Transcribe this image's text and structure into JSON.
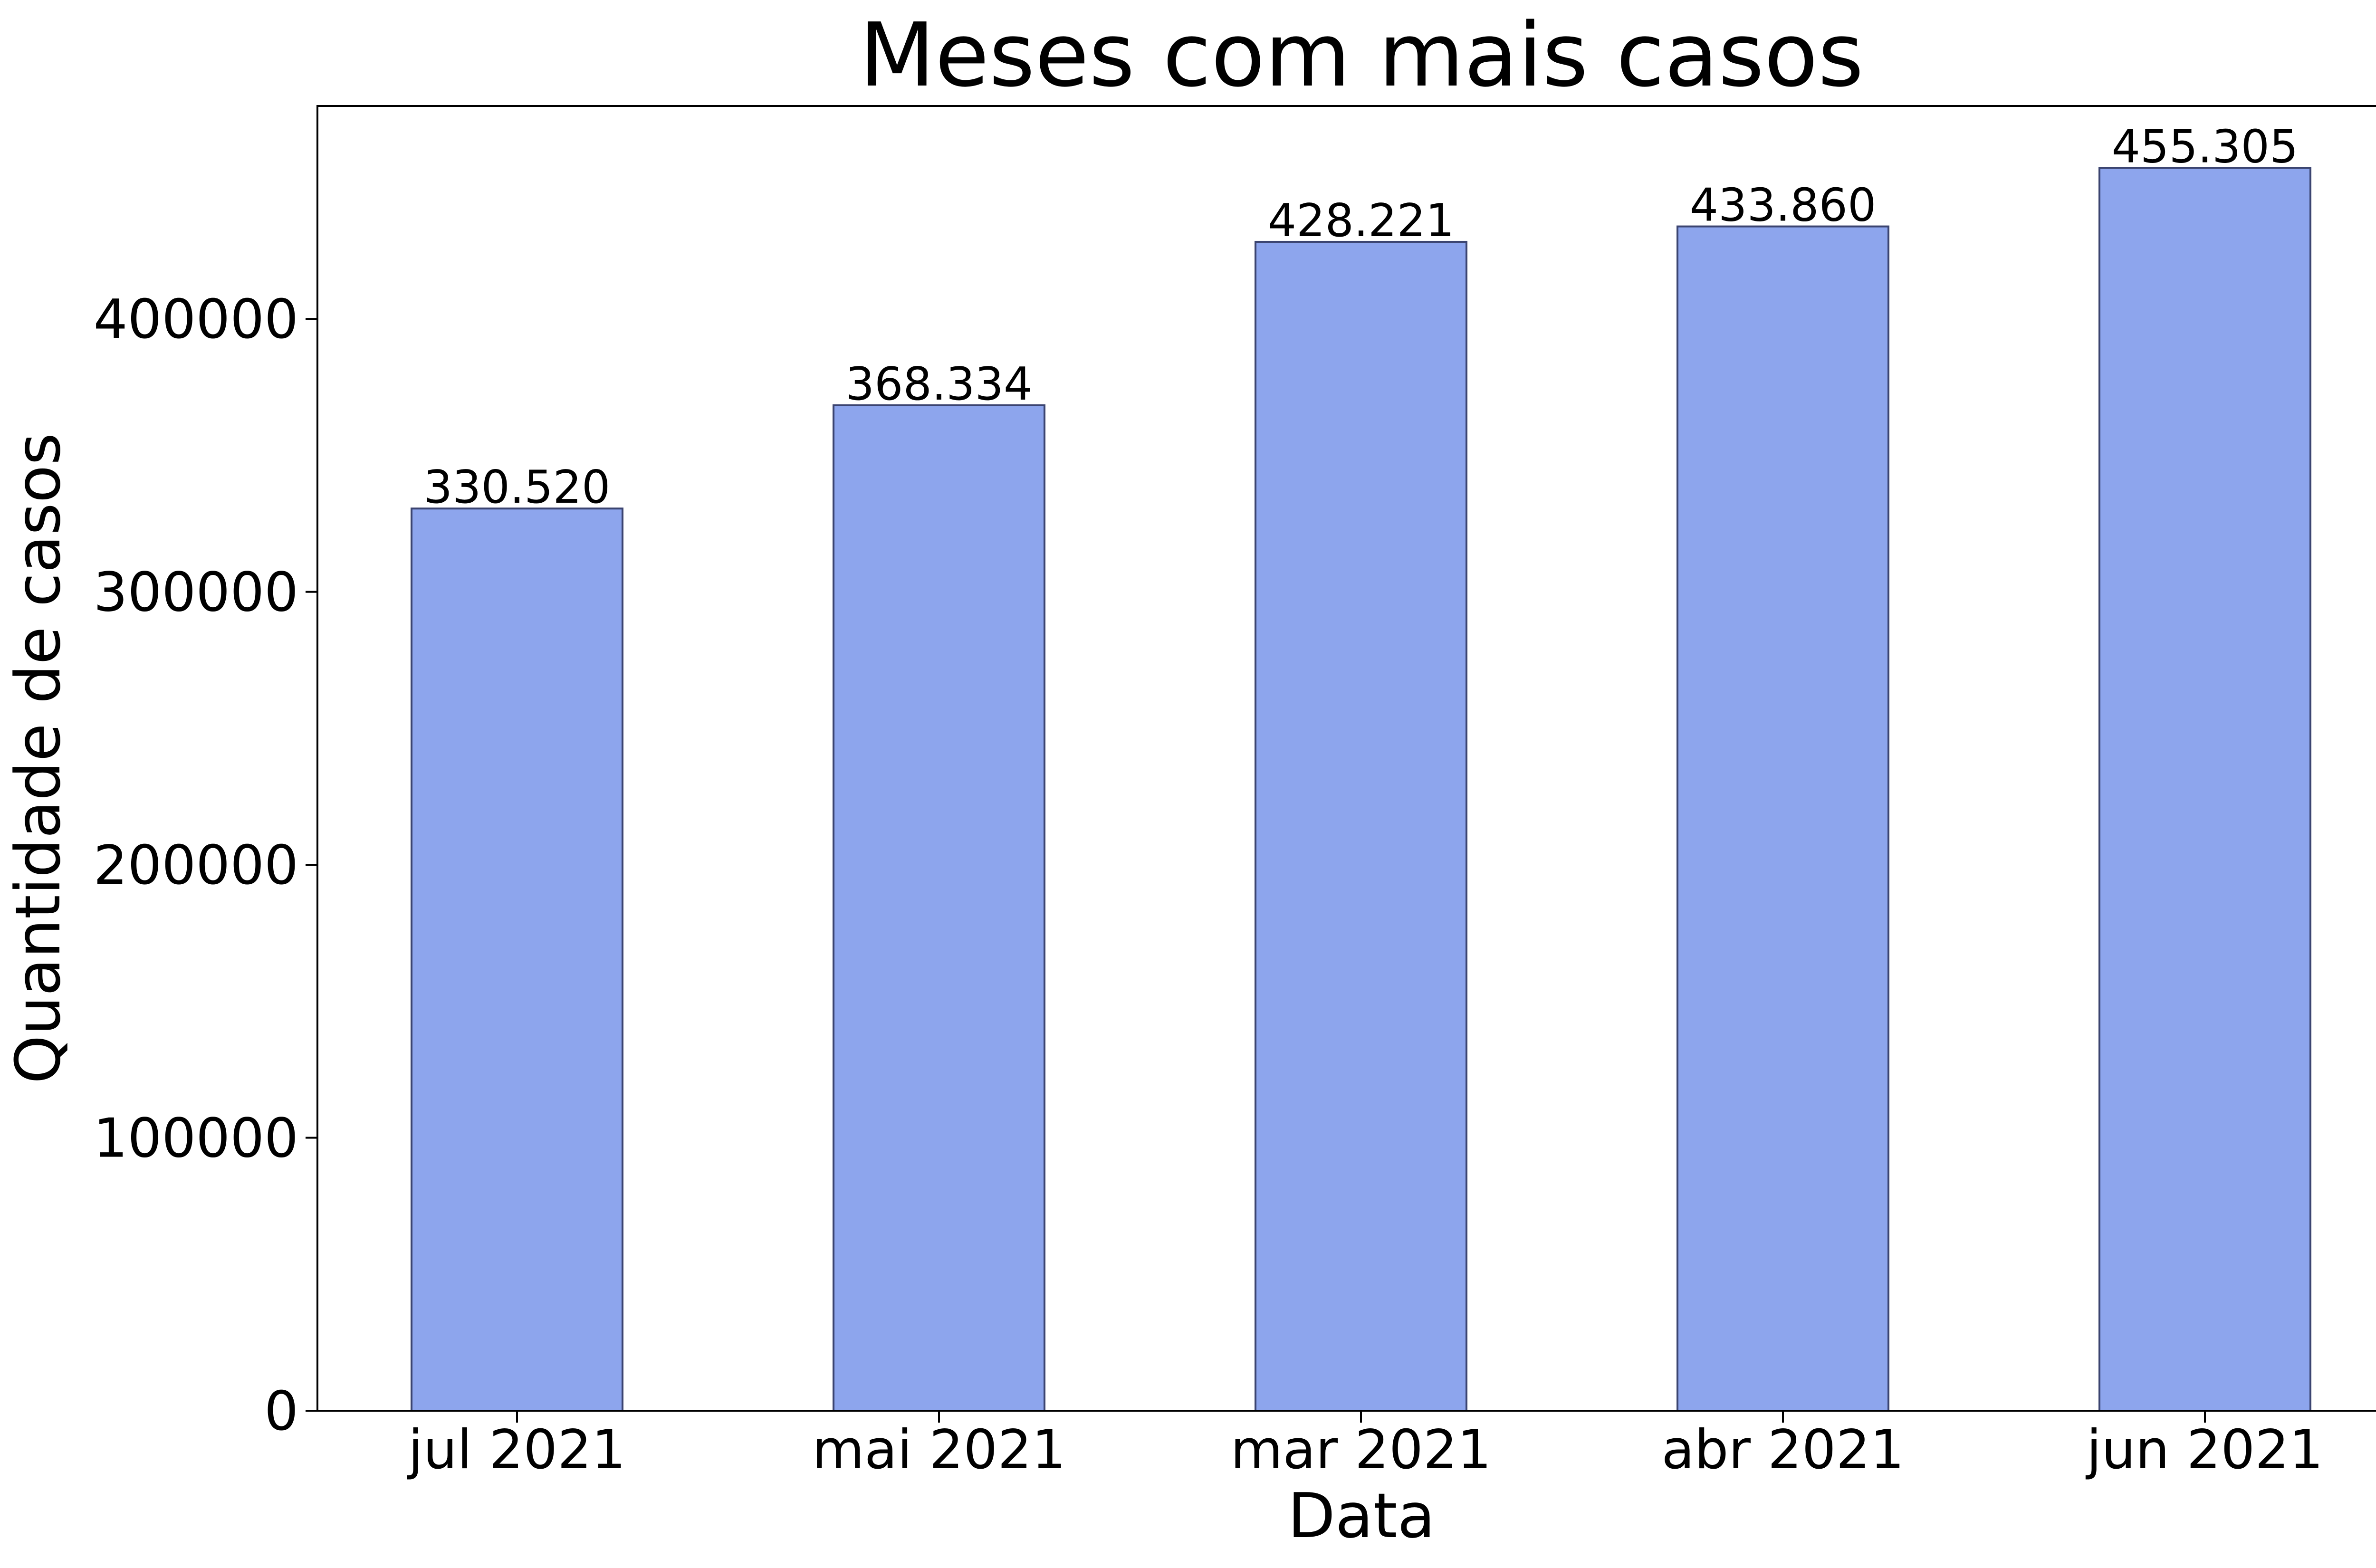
{
  "chart_data": {
    "type": "bar",
    "title": "Meses com mais casos",
    "xlabel": "Data",
    "ylabel": "Quantidade de casos",
    "categories": [
      "jul 2021",
      "mai 2021",
      "mar 2021",
      "abr 2021",
      "jun 2021"
    ],
    "values": [
      330520,
      368334,
      428221,
      433860,
      455305
    ],
    "value_labels": [
      "330.520",
      "368.334",
      "428.221",
      "433.860",
      "455.305"
    ],
    "yticks": [
      0,
      100000,
      200000,
      300000,
      400000
    ],
    "ytick_labels": [
      "0",
      "100000",
      "200000",
      "300000",
      "400000"
    ],
    "ylim": [
      0,
      478000
    ],
    "bar_color": "#8da5ed",
    "bar_edge_color": "#3b4470",
    "grid": false,
    "legend": "none"
  }
}
